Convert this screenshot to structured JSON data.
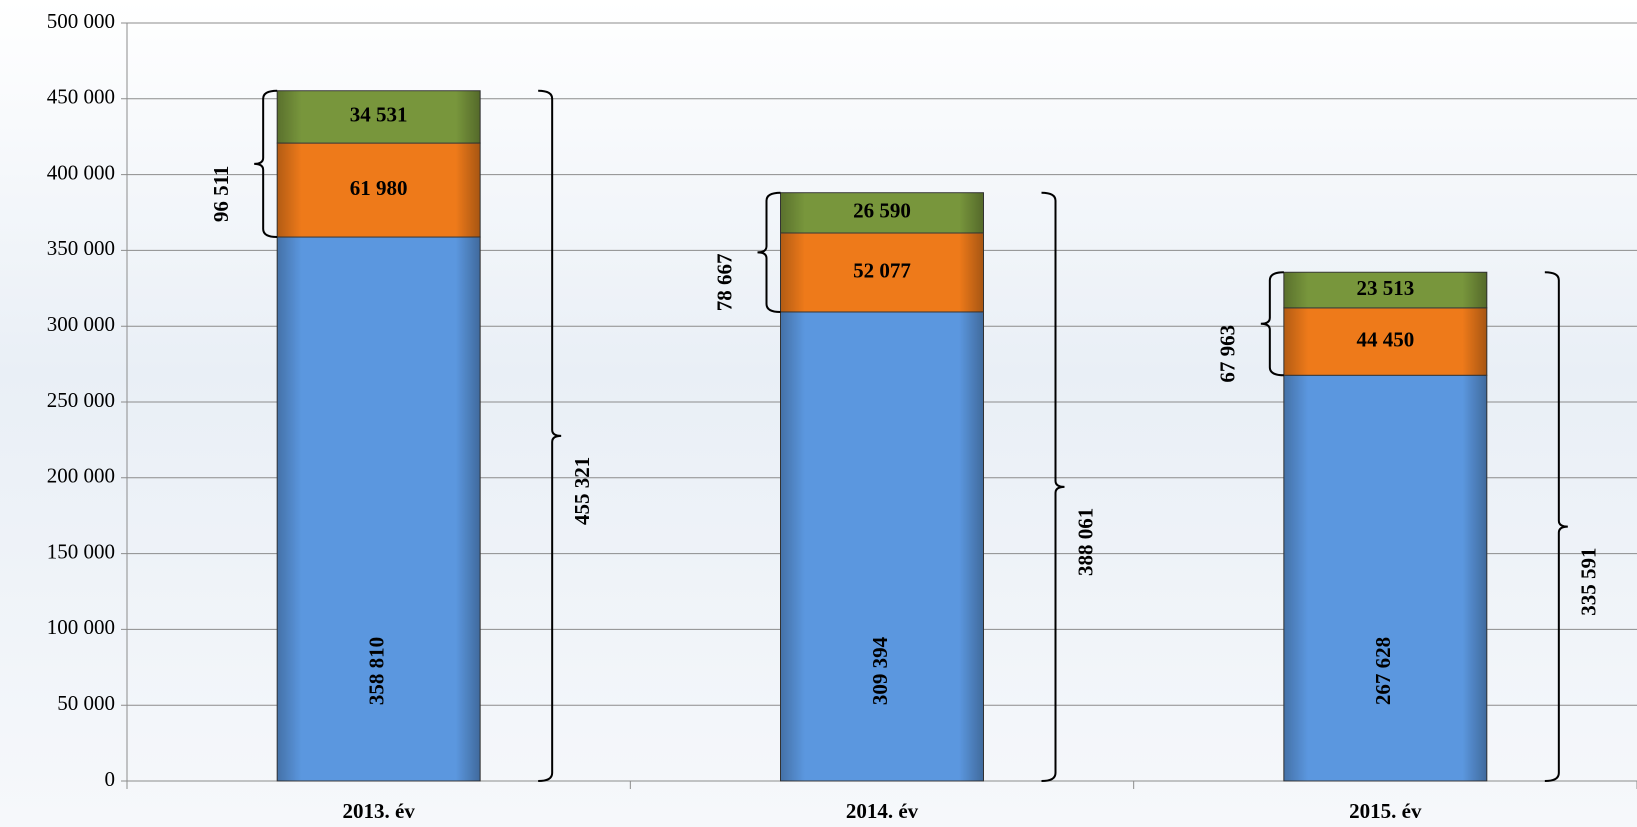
{
  "chart_data": {
    "type": "bar",
    "categories": [
      "2013. év",
      "2014. év",
      "2015. év"
    ],
    "series": [
      {
        "color": "#5b97df",
        "values": [
          358810,
          309394,
          267628
        ],
        "value_labels": [
          "358 810",
          "309 394",
          "267 628"
        ]
      },
      {
        "color": "#ee7a1a",
        "values": [
          61980,
          52077,
          44450
        ],
        "value_labels": [
          "61 980",
          "52 077",
          "44 450"
        ]
      },
      {
        "color": "#78963c",
        "values": [
          34531,
          26590,
          23513
        ],
        "value_labels": [
          "34 531",
          "26 590",
          "23 513"
        ]
      }
    ],
    "totals": {
      "values": [
        455321,
        388061,
        335591
      ],
      "value_labels": [
        "455 321",
        "388 061",
        "335 591"
      ]
    },
    "subtotals": {
      "values": [
        96511,
        78667,
        67963
      ],
      "value_labels": [
        "96 511",
        "78 667",
        "67 963"
      ]
    },
    "ylim": [
      0,
      500000
    ],
    "yticks": [
      0,
      {
        "value": 50000,
        "label": "50 000"
      },
      {
        "value": 100000,
        "label": "100 000"
      },
      {
        "value": 150000,
        "label": "150 000"
      },
      {
        "value": 200000,
        "label": "200 000"
      },
      {
        "value": 250000,
        "label": "250 000"
      },
      {
        "value": 300000,
        "label": "300 000"
      },
      {
        "value": 350000,
        "label": "350 000"
      },
      {
        "value": 400000,
        "label": "400 000"
      },
      {
        "value": 450000,
        "label": "450 000"
      },
      {
        "value": 500000,
        "label": "500 000"
      }
    ],
    "grid": true
  }
}
